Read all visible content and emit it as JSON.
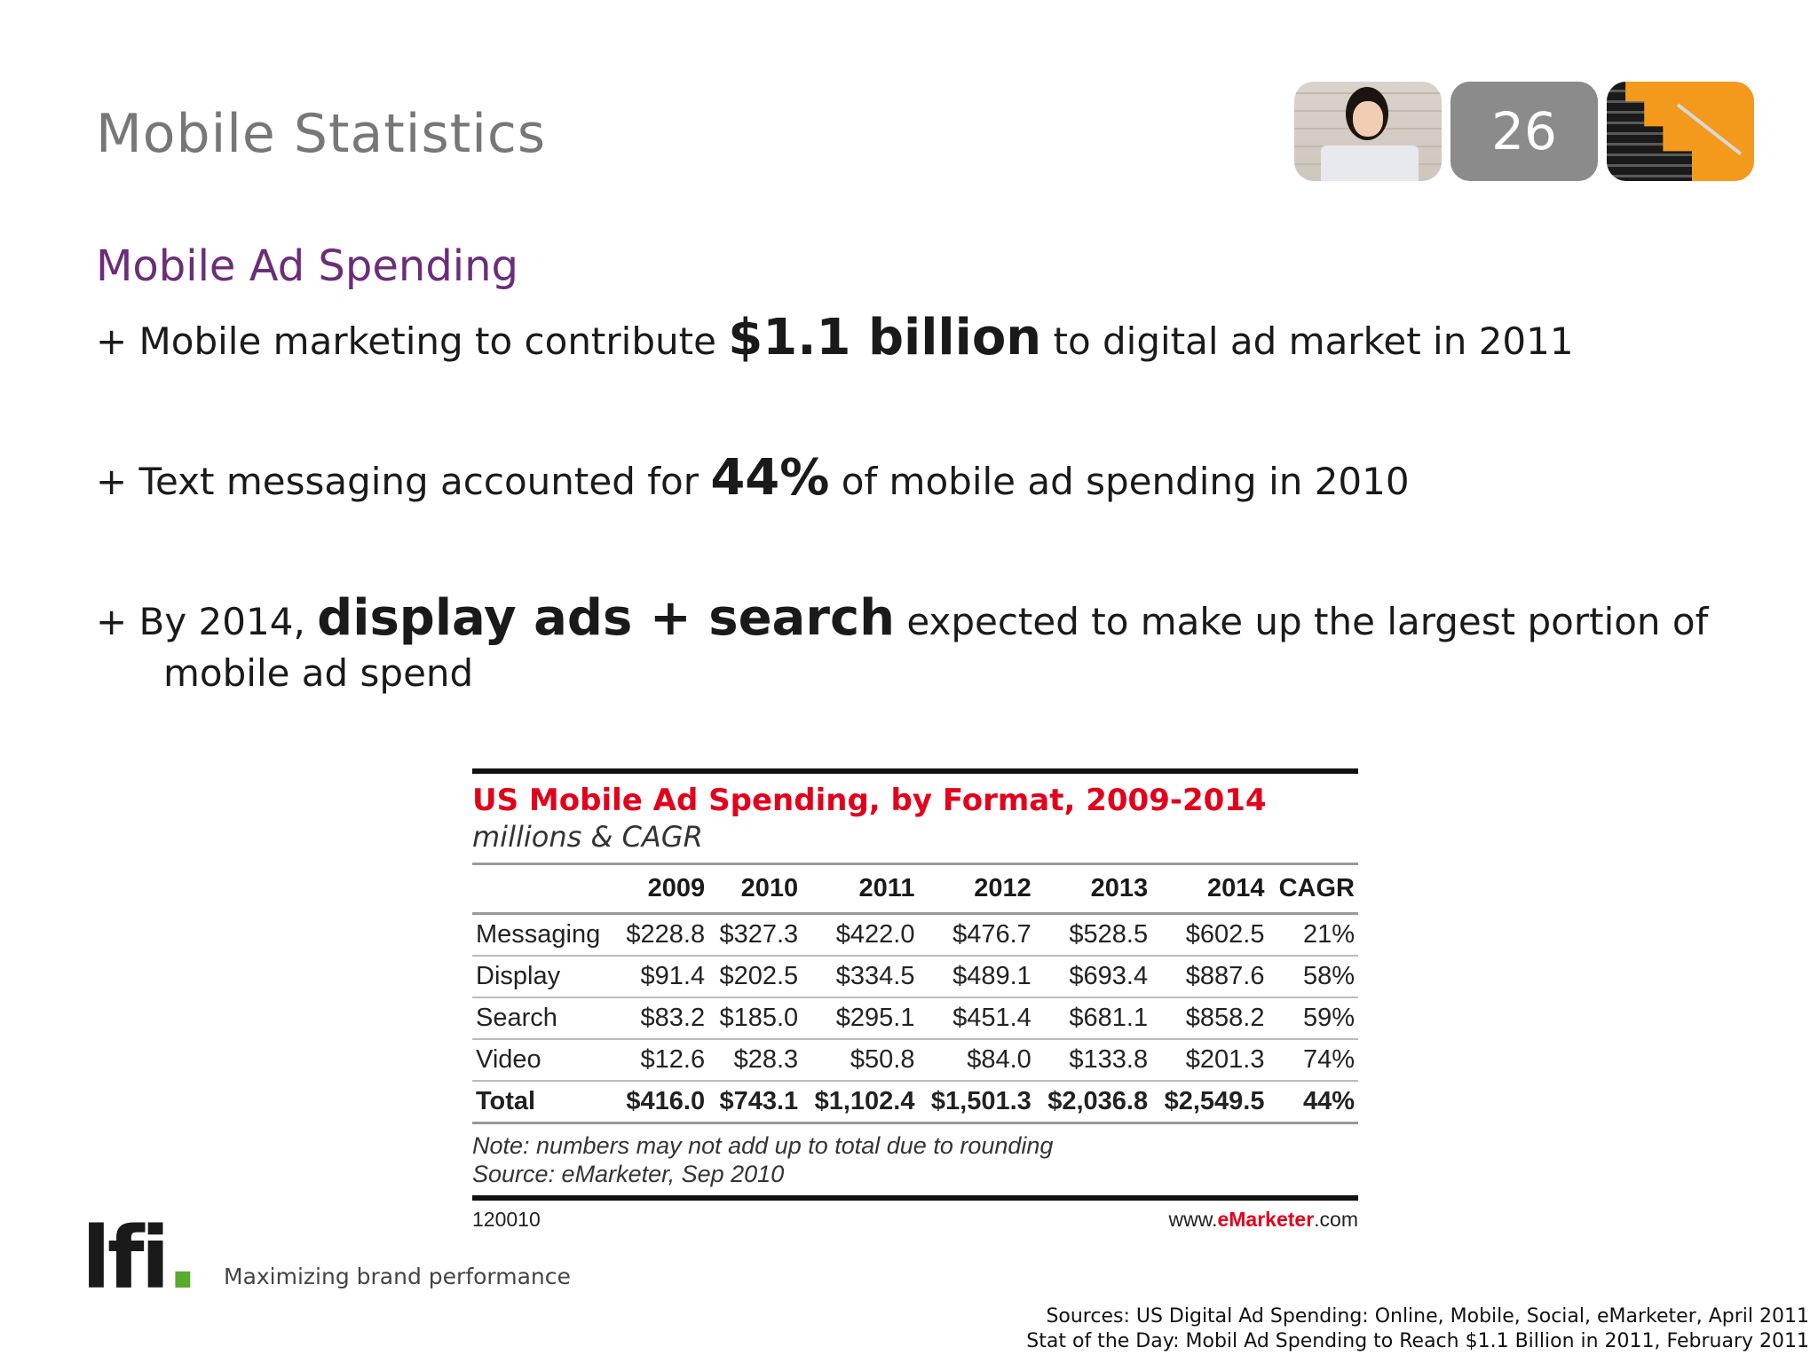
{
  "header": {
    "title": "Mobile Statistics",
    "slide_number": "26"
  },
  "section": {
    "subtitle": "Mobile Ad Spending"
  },
  "bullets": [
    {
      "prefix": "+ Mobile marketing to contribute ",
      "highlight": "$1.1 billion",
      "suffix": " to digital ad market in 2011"
    },
    {
      "prefix": "+ Text messaging accounted for ",
      "highlight": "44%",
      "suffix": " of mobile ad spending in 2010"
    },
    {
      "prefix": "+ By 2014, ",
      "highlight": "display ads + search",
      "suffix": " expected to make up the largest portion of",
      "continuation": "mobile ad spend"
    }
  ],
  "table": {
    "title": "US Mobile Ad Spending, by Format, 2009-2014",
    "subtitle": "millions & CAGR",
    "columns": [
      "",
      "2009",
      "2010",
      "2011",
      "2012",
      "2013",
      "2014",
      "CAGR"
    ],
    "rows": [
      [
        "Messaging",
        "$228.8",
        "$327.3",
        "$422.0",
        "$476.7",
        "$528.5",
        "$602.5",
        "21%"
      ],
      [
        "Display",
        "$91.4",
        "$202.5",
        "$334.5",
        "$489.1",
        "$693.4",
        "$887.6",
        "58%"
      ],
      [
        "Search",
        "$83.2",
        "$185.0",
        "$295.1",
        "$451.4",
        "$681.1",
        "$858.2",
        "59%"
      ],
      [
        "Video",
        "$12.6",
        "$28.3",
        "$50.8",
        "$84.0",
        "$133.8",
        "$201.3",
        "74%"
      ]
    ],
    "total": [
      "Total",
      "$416.0",
      "$743.1",
      "$1,102.4",
      "$1,501.3",
      "$2,036.8",
      "$2,549.5",
      "44%"
    ],
    "note": "Note: numbers may not add up to total due to rounding",
    "source": "Source: eMarketer, Sep 2010",
    "code": "120010",
    "site_prefix": "www.",
    "site_brand": "eMarketer",
    "site_suffix": ".com"
  },
  "footer": {
    "logo_text": "lfi",
    "logo_dot": ".",
    "tagline": "Maximizing brand performance",
    "sources": [
      "Sources: US Digital Ad Spending: Online, Mobile, Social, eMarketer, April 2011",
      "Stat of the Day: Mobil Ad Spending to Reach $1.1 Billion in 2011, February 2011"
    ]
  },
  "colors": {
    "title_gray": "#777777",
    "subtitle_purple": "#6b2d7a",
    "table_title_red": "#e3001b",
    "logo_green": "#5aaa2c",
    "badge_gray": "#8b8b8b",
    "badge_orange": "#f39a1c"
  }
}
